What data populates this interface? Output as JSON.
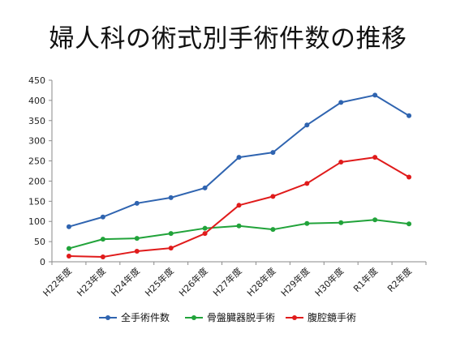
{
  "chart_data": {
    "type": "line",
    "title": "婦人科の術式別手術件数の推移",
    "xlabel": "",
    "ylabel": "",
    "categories": [
      "H22年度",
      "H23年度",
      "H24年度",
      "H25年度",
      "H26年度",
      "H27年度",
      "H28年度",
      "H29年度",
      "H30年度",
      "R1年度",
      "R2年度"
    ],
    "ylim": [
      0,
      450
    ],
    "yticks": [
      0,
      50,
      100,
      150,
      200,
      250,
      300,
      350,
      400,
      450
    ],
    "grid": false,
    "legend_position": "bottom",
    "series": [
      {
        "name": "全手術件数",
        "color": "#2f64b0",
        "values": [
          87,
          111,
          145,
          159,
          183,
          259,
          271,
          339,
          395,
          413,
          362
        ]
      },
      {
        "name": "骨盤臓器脱手術",
        "color": "#21a33a",
        "values": [
          33,
          56,
          58,
          70,
          83,
          89,
          80,
          95,
          97,
          104,
          94
        ]
      },
      {
        "name": "腹腔鏡手術",
        "color": "#e01b1b",
        "values": [
          14,
          12,
          26,
          34,
          70,
          140,
          162,
          194,
          247,
          259,
          210
        ]
      }
    ]
  }
}
